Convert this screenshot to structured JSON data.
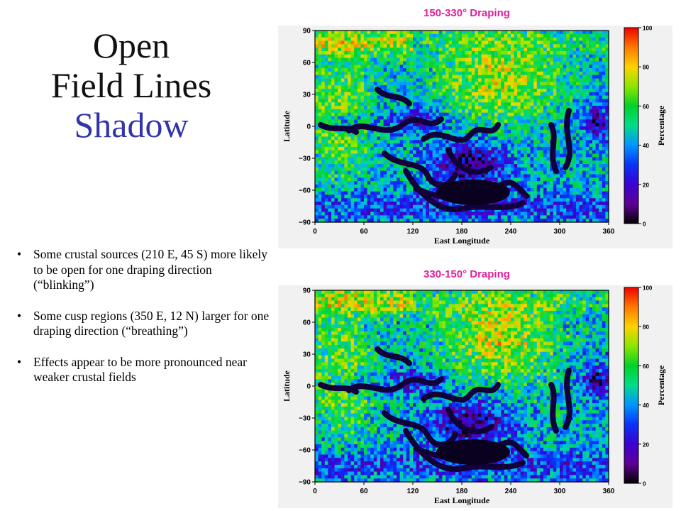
{
  "slide": {
    "title_line1": "Open",
    "title_line2": "Field Lines",
    "title_line3": "Shadow",
    "bullets": [
      "Some crustal sources (210 E, 45 S) more likely to be open for one draping direction (“blinking”)",
      "Some cusp regions (350 E, 12 N) larger for one draping direction (“breathing”)",
      "Effects appear to be more pronounced near weaker crustal fields"
    ]
  },
  "colors": {
    "title_accent": "#3333aa",
    "panel_title": "#e0209a"
  },
  "plots": [
    {
      "title": "150-330°  Draping",
      "ylabel": "Latitude",
      "xlabel": "East Longitude",
      "colorbar_label": "Percentage",
      "x_ticks": [
        "0",
        "60",
        "120",
        "180",
        "240",
        "300",
        "360"
      ],
      "y_ticks": [
        "90",
        "60",
        "30",
        "0",
        "−30",
        "−60",
        "−90"
      ],
      "cbar_ticks": [
        "100",
        "80",
        "60",
        "40",
        "20",
        "0"
      ]
    },
    {
      "title": "330-150°  Draping",
      "ylabel": "Latitude",
      "xlabel": "East Longitude",
      "colorbar_label": "Percentage",
      "x_ticks": [
        "0",
        "60",
        "120",
        "180",
        "240",
        "300",
        "360"
      ],
      "y_ticks": [
        "90",
        "60",
        "30",
        "0",
        "−30",
        "−60",
        "−90"
      ],
      "cbar_ticks": [
        "100",
        "80",
        "60",
        "40",
        "20",
        "0"
      ]
    }
  ]
}
